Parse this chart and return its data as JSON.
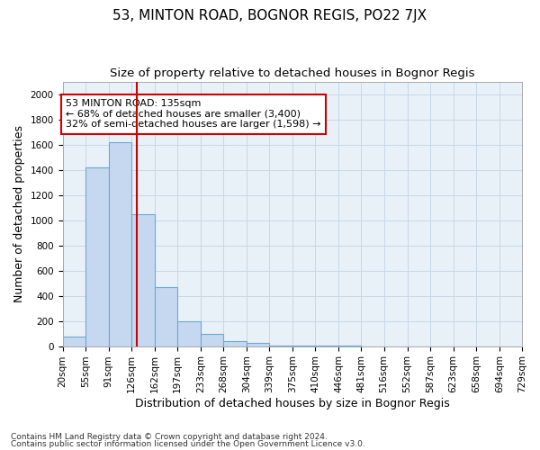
{
  "title": "53, MINTON ROAD, BOGNOR REGIS, PO22 7JX",
  "subtitle": "Size of property relative to detached houses in Bognor Regis",
  "xlabel": "Distribution of detached houses by size in Bognor Regis",
  "ylabel": "Number of detached properties",
  "footnote1": "Contains HM Land Registry data © Crown copyright and database right 2024.",
  "footnote2": "Contains public sector information licensed under the Open Government Licence v3.0.",
  "bin_edges": [
    20,
    55,
    91,
    126,
    162,
    197,
    233,
    268,
    304,
    339,
    375,
    410,
    446,
    481,
    516,
    552,
    587,
    623,
    658,
    694,
    729
  ],
  "bar_heights": [
    75,
    1420,
    1620,
    1050,
    470,
    200,
    100,
    40,
    25,
    5,
    5,
    2,
    2,
    0,
    0,
    0,
    0,
    0,
    0,
    0
  ],
  "bar_color": "#c5d8ef",
  "bar_edgecolor": "#6aaad4",
  "vline_x": 135,
  "vline_color": "#cc0000",
  "annotation_text": "53 MINTON ROAD: 135sqm\n← 68% of detached houses are smaller (3,400)\n32% of semi-detached houses are larger (1,598) →",
  "annotation_box_edgecolor": "#cc0000",
  "annotation_box_facecolor": "#ffffff",
  "ylim": [
    0,
    2100
  ],
  "yticks": [
    0,
    200,
    400,
    600,
    800,
    1000,
    1200,
    1400,
    1600,
    1800,
    2000
  ],
  "grid_color": "#c8d8e8",
  "bg_color": "#e8f0f8",
  "title_fontsize": 11,
  "subtitle_fontsize": 9.5,
  "axis_label_fontsize": 9,
  "tick_fontsize": 7.5,
  "annotation_fontsize": 8
}
